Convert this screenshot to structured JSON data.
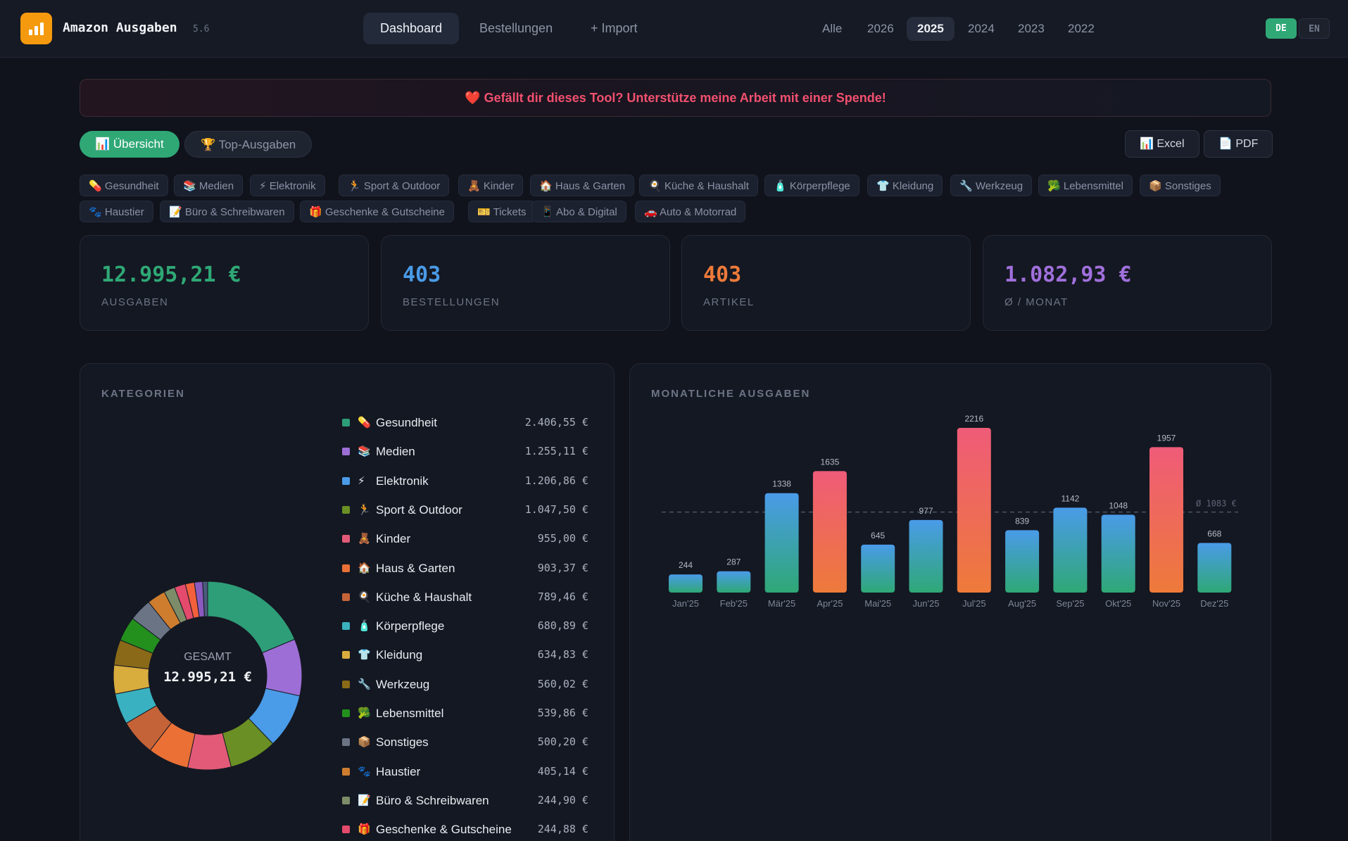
{
  "app": {
    "title": "Amazon Ausgaben",
    "version": "5.6"
  },
  "nav": {
    "dashboard": "Dashboard",
    "orders": "Bestellungen",
    "import": "+ Import"
  },
  "years": [
    "Alle",
    "2026",
    "2025",
    "2024",
    "2023",
    "2022"
  ],
  "year_selected": "2025",
  "lang": {
    "de": "DE",
    "en": "EN"
  },
  "banner": {
    "icon": "heart-icon",
    "text": "Gefällt dir dieses Tool? Unterstütze meine Arbeit mit einer Spende!"
  },
  "tabs": {
    "overview": "Übersicht",
    "top": "Top-Ausgaben"
  },
  "exports": {
    "excel": "Excel",
    "pdf": "PDF"
  },
  "chips": [
    {
      "icon": "💊",
      "label": "Gesundheit"
    },
    {
      "icon": "📚",
      "label": "Medien"
    },
    {
      "icon": "⚡",
      "label": "Elektronik"
    },
    {
      "icon": "🏃",
      "label": "Sport & Outdoor"
    },
    {
      "icon": "🧸",
      "label": "Kinder"
    },
    {
      "icon": "🏠",
      "label": "Haus & Garten"
    },
    {
      "icon": "🍳",
      "label": "Küche & Haushalt"
    },
    {
      "icon": "🧴",
      "label": "Körperpflege"
    },
    {
      "icon": "👕",
      "label": "Kleidung"
    },
    {
      "icon": "🔧",
      "label": "Werkzeug"
    },
    {
      "icon": "🥦",
      "label": "Lebensmittel"
    },
    {
      "icon": "📦",
      "label": "Sonstiges"
    },
    {
      "icon": "🐾",
      "label": "Haustier"
    },
    {
      "icon": "📝",
      "label": "Büro & Schreibwaren"
    },
    {
      "icon": "🎁",
      "label": "Geschenke & Gutscheine"
    },
    {
      "icon": "🎫",
      "label": "Tickets"
    },
    {
      "icon": "📱",
      "label": "Abo & Digital"
    },
    {
      "icon": "🚗",
      "label": "Auto & Motorrad"
    }
  ],
  "stats": [
    {
      "value": "12.995,21 €",
      "label": "AUSGABEN",
      "color": "#2fa876"
    },
    {
      "value": "403",
      "label": "BESTELLUNGEN",
      "color": "#4a9be8"
    },
    {
      "value": "403",
      "label": "ARTIKEL",
      "color": "#ee7a3a"
    },
    {
      "value": "1.082,93 €",
      "label": "Ø / MONAT",
      "color": "#a070dc"
    }
  ],
  "categories_panel": {
    "title": "KATEGORIEN",
    "center_label": "GESAMT",
    "center_value": "12.995,21 €",
    "items": [
      {
        "icon": "💊",
        "name": "Gesundheit",
        "amount": "2.406,55 €",
        "value": 2406.55,
        "color": "#2e9e78"
      },
      {
        "icon": "📚",
        "name": "Medien",
        "amount": "1.255,11 €",
        "value": 1255.11,
        "color": "#9d6fd6"
      },
      {
        "icon": "⚡",
        "name": "Elektronik",
        "amount": "1.206,86 €",
        "value": 1206.86,
        "color": "#4a9be8"
      },
      {
        "icon": "🏃",
        "name": "Sport & Outdoor",
        "amount": "1.047,50 €",
        "value": 1047.5,
        "color": "#6a8f24"
      },
      {
        "icon": "🧸",
        "name": "Kinder",
        "amount": "955,00 €",
        "value": 955.0,
        "color": "#e35a78"
      },
      {
        "icon": "🏠",
        "name": "Haus & Garten",
        "amount": "903,37 €",
        "value": 903.37,
        "color": "#ea7036"
      },
      {
        "icon": "🍳",
        "name": "Küche & Haushalt",
        "amount": "789,46 €",
        "value": 789.46,
        "color": "#c56338"
      },
      {
        "icon": "🧴",
        "name": "Körperpflege",
        "amount": "680,89 €",
        "value": 680.89,
        "color": "#3ab1c0"
      },
      {
        "icon": "👕",
        "name": "Kleidung",
        "amount": "634,83 €",
        "value": 634.83,
        "color": "#d9ac3e"
      },
      {
        "icon": "🔧",
        "name": "Werkzeug",
        "amount": "560,02 €",
        "value": 560.02,
        "color": "#8a6a18"
      },
      {
        "icon": "🥦",
        "name": "Lebensmittel",
        "amount": "539,86 €",
        "value": 539.86,
        "color": "#23901e"
      },
      {
        "icon": "📦",
        "name": "Sonstiges",
        "amount": "500,20 €",
        "value": 500.2,
        "color": "#6a7485"
      },
      {
        "icon": "🐾",
        "name": "Haustier",
        "amount": "405,14 €",
        "value": 405.14,
        "color": "#ce7d2e"
      },
      {
        "icon": "📝",
        "name": "Büro & Schreibwaren",
        "amount": "244,90 €",
        "value": 244.9,
        "color": "#7c8c68"
      },
      {
        "icon": "🎁",
        "name": "Geschenke & Gutscheine",
        "amount": "244,88 €",
        "value": 244.88,
        "color": "#e34a6c"
      }
    ],
    "extra_slices": [
      {
        "value": 200,
        "color": "#f2603c"
      },
      {
        "value": 180,
        "color": "#8a5ac0"
      },
      {
        "value": 110,
        "color": "#4a5a7a"
      }
    ]
  },
  "chart_data": {
    "type": "bar",
    "title": "MONATLICHE AUSGABEN",
    "categories": [
      "Jan'25",
      "Feb'25",
      "Mär'25",
      "Apr'25",
      "Mai'25",
      "Jun'25",
      "Jul'25",
      "Aug'25",
      "Sep'25",
      "Okt'25",
      "Nov'25",
      "Dez'25"
    ],
    "values": [
      244,
      287,
      1338,
      1635,
      645,
      977,
      2216,
      839,
      1142,
      1048,
      1957,
      668
    ],
    "average": 1083,
    "average_label": "Ø 1083 €",
    "ylim": [
      0,
      2216
    ],
    "colors": {
      "normal_top": "#4a9be8",
      "normal_bottom": "#2fa876",
      "high_top": "#ef5b78",
      "high_bottom": "#ee7a3a"
    }
  }
}
